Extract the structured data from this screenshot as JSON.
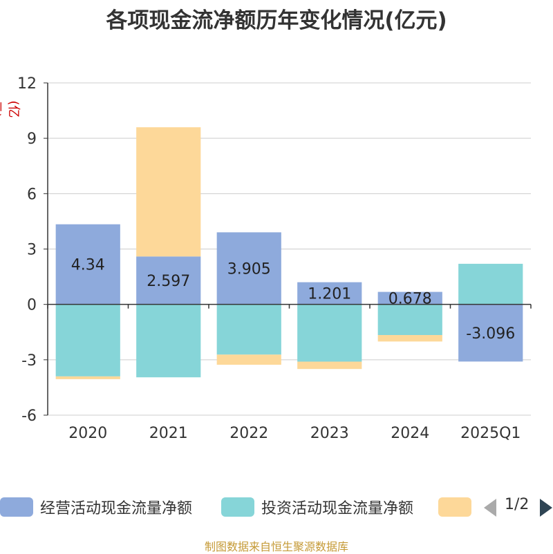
{
  "chart_data": {
    "type": "bar",
    "stacked": true,
    "title": "各项现金流净额历年变化情况(亿元)",
    "unit_label": "(亿元)",
    "categories": [
      "2020",
      "2021",
      "2022",
      "2023",
      "2024",
      "2025Q1"
    ],
    "series": [
      {
        "name": "经营活动现金流量净额",
        "color": "#8eaadc",
        "values": [
          4.34,
          2.597,
          3.905,
          1.201,
          0.678,
          -3.096
        ],
        "labels": [
          "4.34",
          "2.597",
          "3.905",
          "1.201",
          "0.678",
          "-3.096"
        ]
      },
      {
        "name": "投资活动现金流量净额",
        "color": "#86d5d8",
        "values": [
          -3.9,
          -3.95,
          -2.72,
          -3.1,
          -1.66,
          2.2
        ]
      },
      {
        "name": "",
        "color": "#fdd899",
        "values": [
          -0.15,
          7.0,
          -0.55,
          -0.4,
          -0.35,
          0
        ]
      }
    ],
    "ylim": [
      -6,
      12
    ],
    "yticks": [
      -6,
      -3,
      0,
      3,
      6,
      9,
      12
    ],
    "ytick_labels": [
      "-6",
      "-3",
      "0",
      "3",
      "6",
      "9",
      "12"
    ],
    "grid": true,
    "legend_position": "bottom"
  },
  "legend": {
    "page": "1/2"
  },
  "source": "制图数据来自恒生聚源数据库"
}
